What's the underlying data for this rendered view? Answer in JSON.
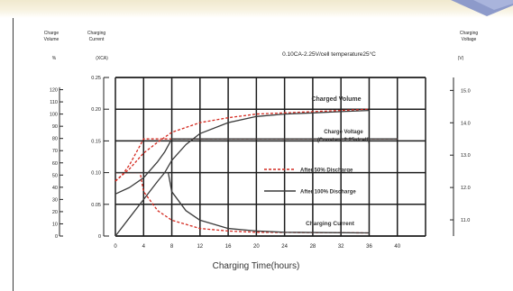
{
  "header": {
    "colors": {
      "band": "#f0e9ce",
      "ribbon": "#8d9aca"
    }
  },
  "chart_data": {
    "type": "line",
    "title": "",
    "conditions": "0.10CA-2.25V/cell  temperature25°C",
    "xlabel": "Charging Time(hours)",
    "x_ticks": [
      0,
      4,
      8,
      12,
      16,
      20,
      24,
      28,
      32,
      36,
      40
    ],
    "xlim": [
      0,
      44
    ],
    "axes": {
      "charge_volume": {
        "title_line1": "Charge",
        "title_line2": "Volume",
        "unit": "%",
        "ticks": [
          0,
          10,
          20,
          30,
          40,
          50,
          60,
          70,
          80,
          90,
          100,
          110,
          120
        ],
        "range": [
          0,
          130
        ]
      },
      "charging_current": {
        "title_line1": "Charging",
        "title_line2": "Current",
        "unit": "(XCA)",
        "ticks": [
          "0",
          "0.05",
          "0.10",
          "0.15",
          "0.20",
          "0.25"
        ],
        "range": [
          0,
          0.25
        ]
      },
      "charging_voltage": {
        "title_line1": "Charging",
        "title_line2": "Voltage",
        "unit": "(V)",
        "ticks": [
          "11.0",
          "12.0",
          "13.0",
          "14.0",
          "15.0"
        ],
        "range": [
          10.5,
          15.4
        ]
      }
    },
    "grid": true,
    "legend_placement": "inside-right",
    "legend": [
      {
        "label": "After 50% Discharge",
        "style": "dashed",
        "color": "#d42a20"
      },
      {
        "label": "After 100% Discharge",
        "style": "solid",
        "color": "#3a3a3a"
      }
    ],
    "annotations": [
      {
        "text": "Charged Volume"
      },
      {
        "text": "Charge Voltage"
      },
      {
        "text": "(Constant 2.25v/cell)"
      },
      {
        "text": "Charging Current"
      }
    ],
    "series": [
      {
        "name": "Charged Volume",
        "condition": "After 50% Discharge",
        "axis": "charge_volume",
        "points": [
          [
            0,
            45
          ],
          [
            2,
            55
          ],
          [
            4,
            68
          ],
          [
            6,
            77
          ],
          [
            8,
            85
          ],
          [
            12,
            93
          ],
          [
            16,
            97
          ],
          [
            20,
            100
          ],
          [
            24,
            101
          ],
          [
            28,
            102
          ],
          [
            32,
            103
          ],
          [
            36,
            104
          ]
        ]
      },
      {
        "name": "Charged Volume",
        "condition": "After 100% Discharge",
        "axis": "charge_volume",
        "points": [
          [
            0,
            0
          ],
          [
            2,
            15
          ],
          [
            4,
            30
          ],
          [
            6,
            45
          ],
          [
            7,
            52
          ],
          [
            8,
            62
          ],
          [
            10,
            75
          ],
          [
            12,
            84
          ],
          [
            16,
            93
          ],
          [
            20,
            98
          ],
          [
            24,
            100
          ],
          [
            28,
            101
          ],
          [
            32,
            102
          ],
          [
            36,
            103
          ]
        ]
      },
      {
        "name": "Charge Voltage",
        "condition": "After 50% Discharge",
        "axis": "charging_voltage",
        "points": [
          [
            0,
            12.2
          ],
          [
            1,
            12.4
          ],
          [
            2,
            12.7
          ],
          [
            3,
            13.1
          ],
          [
            3.5,
            13.3
          ],
          [
            4,
            13.5
          ],
          [
            40,
            13.5
          ]
        ]
      },
      {
        "name": "Charge Voltage",
        "condition": "After 100% Discharge",
        "axis": "charging_voltage",
        "points": [
          [
            0,
            11.8
          ],
          [
            2,
            12.0
          ],
          [
            4,
            12.3
          ],
          [
            6,
            12.8
          ],
          [
            7,
            13.1
          ],
          [
            7.5,
            13.3
          ],
          [
            8,
            13.5
          ],
          [
            40,
            13.5
          ]
        ]
      },
      {
        "name": "Charging Current",
        "condition": "After 50% Discharge",
        "axis": "charging_current",
        "points": [
          [
            0,
            0.1
          ],
          [
            3.5,
            0.1
          ],
          [
            4,
            0.07
          ],
          [
            6,
            0.04
          ],
          [
            8,
            0.025
          ],
          [
            12,
            0.012
          ],
          [
            16,
            0.008
          ],
          [
            20,
            0.006
          ],
          [
            36,
            0.005
          ]
        ]
      },
      {
        "name": "Charging Current",
        "condition": "After 100% Discharge",
        "axis": "charging_current",
        "points": [
          [
            0,
            0.1
          ],
          [
            7.5,
            0.1
          ],
          [
            8,
            0.07
          ],
          [
            10,
            0.04
          ],
          [
            12,
            0.025
          ],
          [
            16,
            0.012
          ],
          [
            20,
            0.008
          ],
          [
            24,
            0.006
          ],
          [
            36,
            0.005
          ]
        ]
      }
    ]
  }
}
